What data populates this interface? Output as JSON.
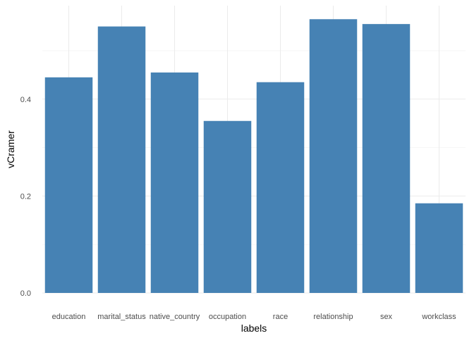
{
  "chart_data": {
    "type": "bar",
    "categories": [
      "education",
      "marital_status",
      "native_country",
      "occupation",
      "race",
      "relationship",
      "sex",
      "workclass"
    ],
    "values": [
      0.445,
      0.55,
      0.455,
      0.355,
      0.435,
      0.565,
      0.555,
      0.185
    ],
    "xlabel": "labels",
    "ylabel": "vCramer",
    "y_ticks": [
      "0.0",
      "0.2",
      "0.4"
    ],
    "y_tick_values": [
      0,
      0.2,
      0.4
    ],
    "ylim": [
      0,
      0.593
    ],
    "grid": true,
    "bar_color": "#4682B4"
  }
}
